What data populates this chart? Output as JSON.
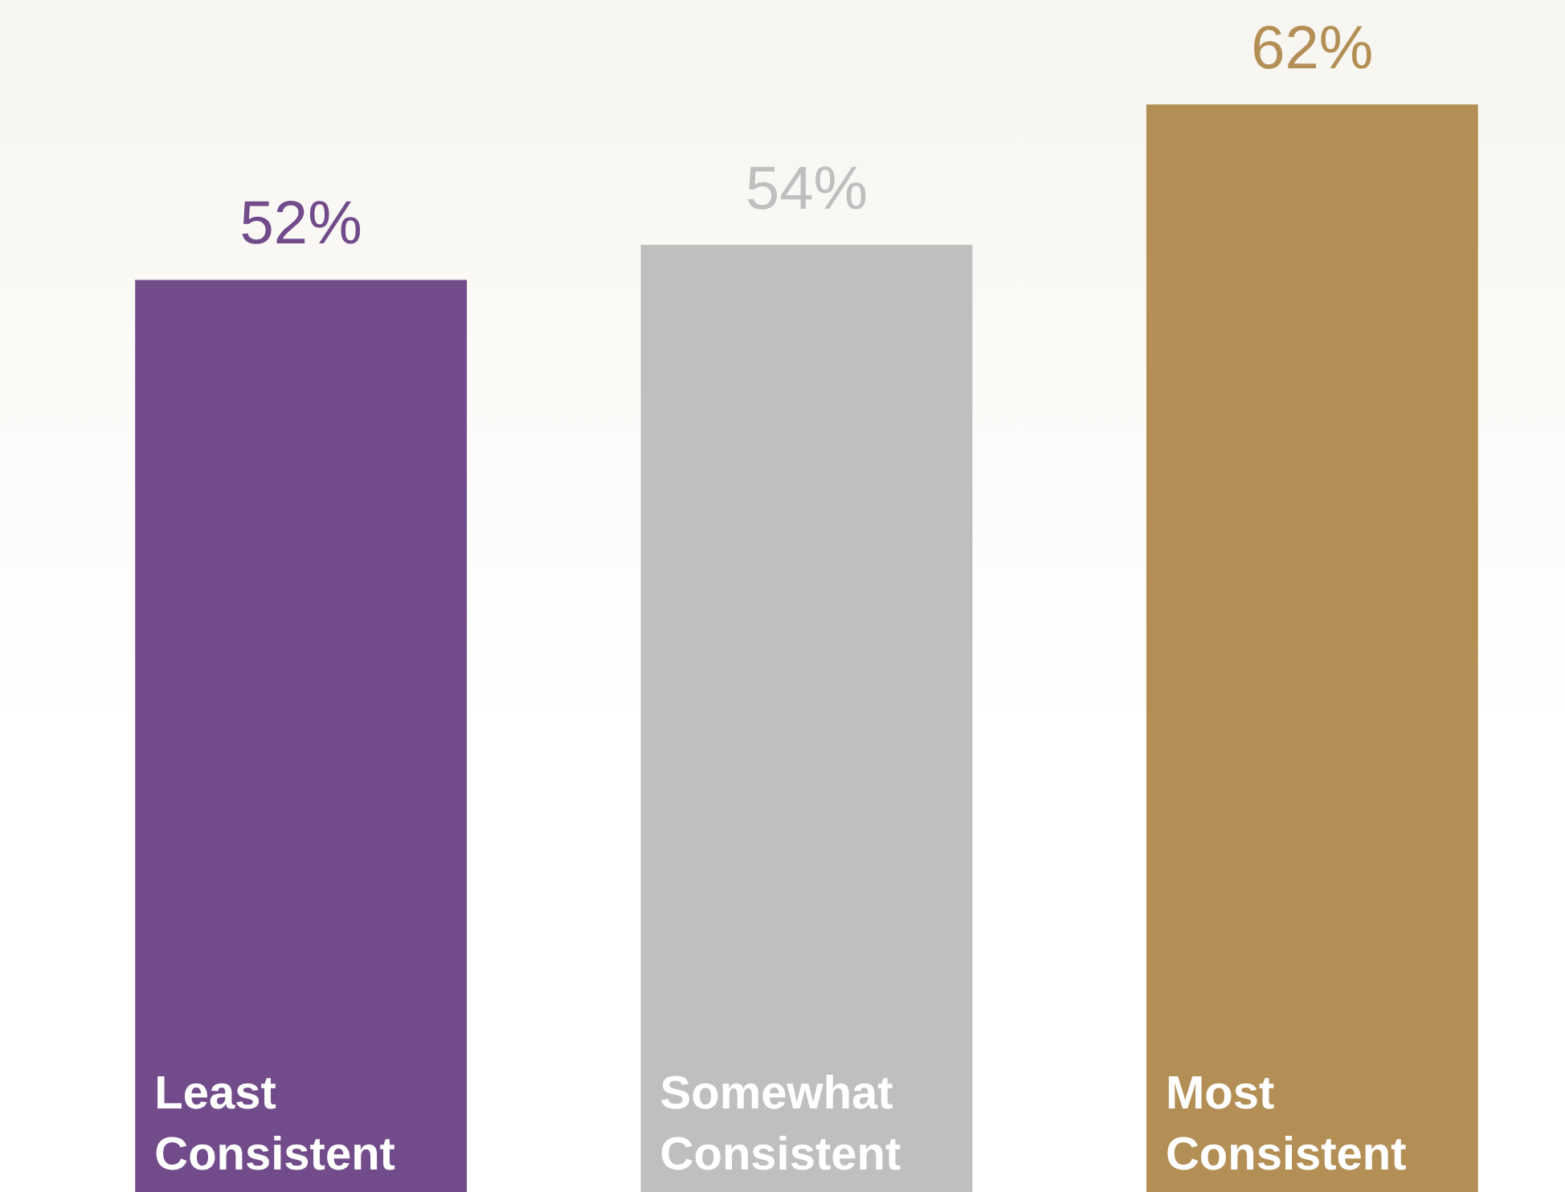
{
  "chart_data": {
    "type": "bar",
    "categories": [
      "Least Consistent",
      "Somewhat Consistent",
      "Most Consistent"
    ],
    "values": [
      52,
      54,
      62
    ],
    "colors": [
      "#724b8a",
      "#bfbfbf",
      "#b38f55"
    ],
    "data_labels": true,
    "value_labels": [
      "52%",
      "54%",
      "62%"
    ],
    "tick_labels": false
  }
}
